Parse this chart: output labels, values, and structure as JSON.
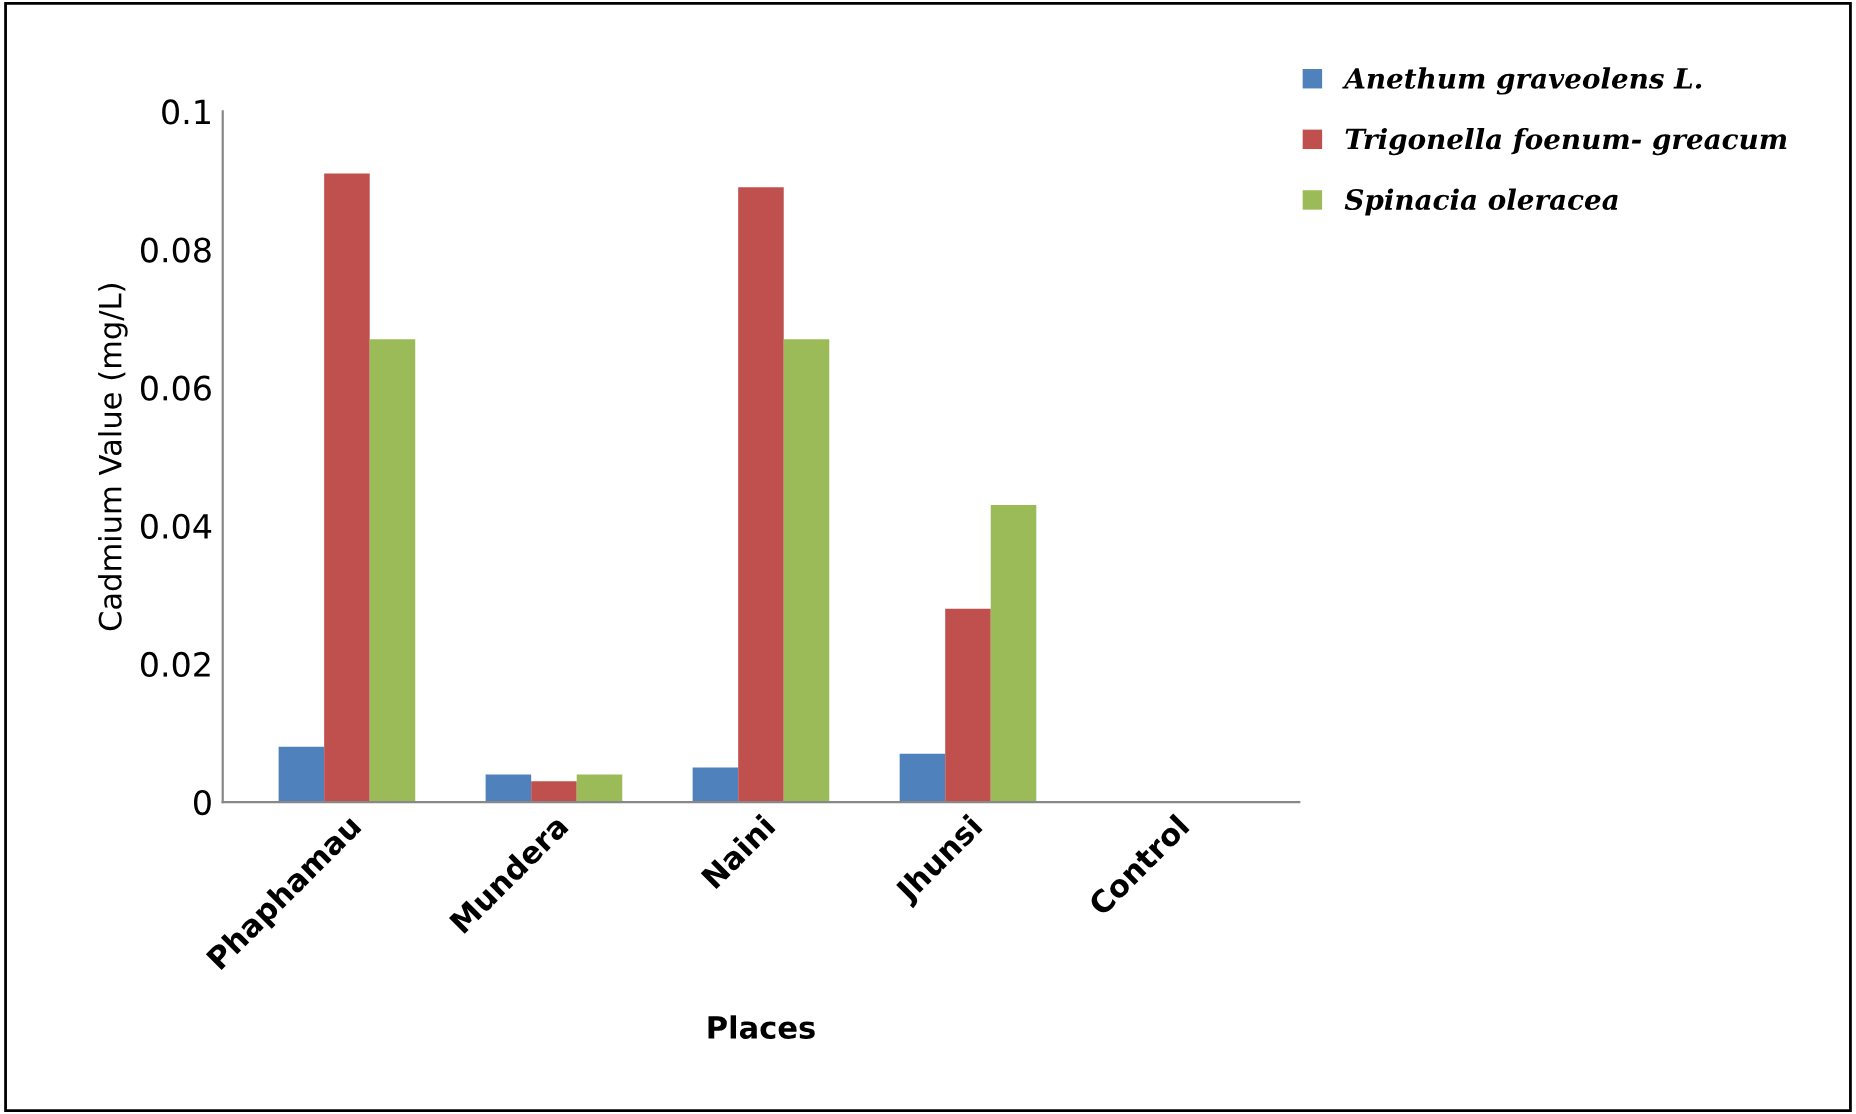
{
  "chart_data": {
    "type": "bar",
    "xlabel": "Places",
    "ylabel": "Cadmium Value (mg/L)",
    "categories": [
      "Phaphamau",
      "Mundera",
      "Naini",
      "Jhunsi",
      "Control"
    ],
    "series": [
      {
        "name": "Anethum graveolens L.",
        "color": "#4f81bd",
        "values": [
          0.008,
          0.004,
          0.005,
          0.007,
          0
        ]
      },
      {
        "name": "Trigonella foenum- greacum",
        "color": "#c0504d",
        "values": [
          0.091,
          0.003,
          0.089,
          0.028,
          0
        ]
      },
      {
        "name": "Spinacia oleracea",
        "color": "#9bbb59",
        "values": [
          0.067,
          0.004,
          0.067,
          0.043,
          0
        ]
      }
    ],
    "ylim": [
      0,
      0.1
    ],
    "yticks": [
      0,
      0.02,
      0.04,
      0.06,
      0.08,
      0.1
    ],
    "grid": false,
    "legend": "top right"
  }
}
